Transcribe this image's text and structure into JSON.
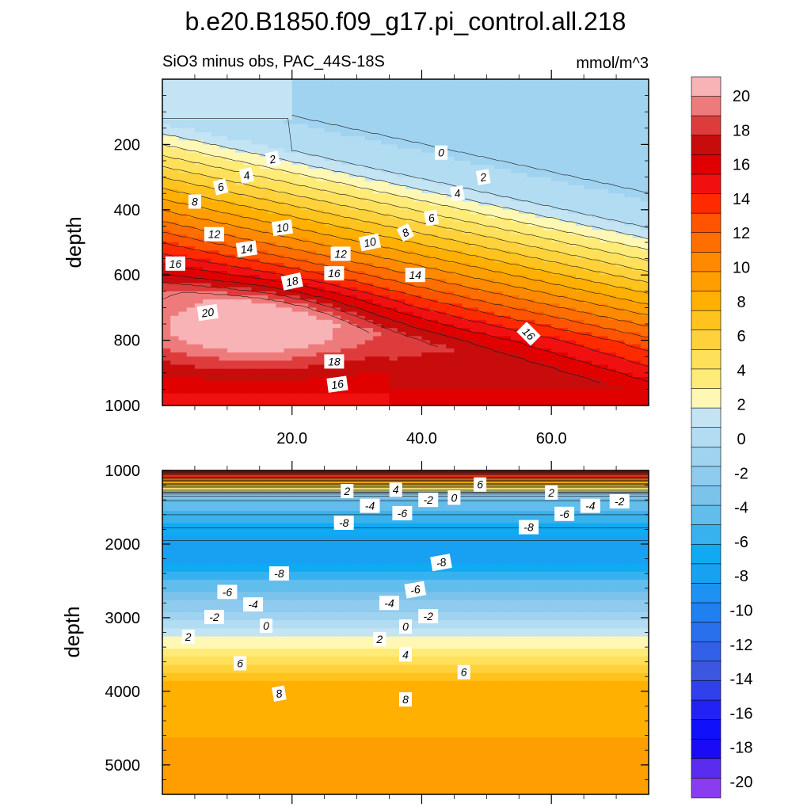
{
  "figure": {
    "title": "b.e20.B1850.f09_g17.pi_control.all.218",
    "subtitle_left": "SiO3 minus obs, PAC_44S-18S",
    "subtitle_right": "mmol/m^3"
  },
  "chart_data": [
    {
      "type": "contour",
      "panel": "upper",
      "xlabel": "",
      "ylabel": "depth",
      "xlim": [
        0,
        75
      ],
      "ylim": [
        1000,
        0
      ],
      "xticks": [
        20,
        40,
        60
      ],
      "xtick_labels": [
        "20.0",
        "40.0",
        "60.0"
      ],
      "yticks": [
        200,
        400,
        600,
        800,
        1000
      ],
      "ytick_labels": [
        "200",
        "400",
        "600",
        "800",
        "1000"
      ],
      "contour_labels": [
        {
          "text": "0",
          "x": 43,
          "y": 225,
          "angle": 0
        },
        {
          "text": "2",
          "x": 17,
          "y": 245,
          "angle": -12
        },
        {
          "text": "2",
          "x": 49.5,
          "y": 300,
          "angle": -10
        },
        {
          "text": "4",
          "x": 13,
          "y": 295,
          "angle": -12
        },
        {
          "text": "4",
          "x": 45.5,
          "y": 350,
          "angle": -10
        },
        {
          "text": "6",
          "x": 9,
          "y": 330,
          "angle": -14
        },
        {
          "text": "6",
          "x": 41.5,
          "y": 425,
          "angle": -10
        },
        {
          "text": "8",
          "x": 5,
          "y": 375,
          "angle": 0
        },
        {
          "text": "8",
          "x": 37.5,
          "y": 470,
          "angle": -28
        },
        {
          "text": "10",
          "x": 18.5,
          "y": 455,
          "angle": -8
        },
        {
          "text": "10",
          "x": 32,
          "y": 500,
          "angle": -12
        },
        {
          "text": "12",
          "x": 8,
          "y": 475,
          "angle": 0
        },
        {
          "text": "12",
          "x": 27.5,
          "y": 535,
          "angle": 0
        },
        {
          "text": "14",
          "x": 13,
          "y": 520,
          "angle": -8
        },
        {
          "text": "14",
          "x": 39,
          "y": 600,
          "angle": 0
        },
        {
          "text": "16",
          "x": 2,
          "y": 565,
          "angle": 0
        },
        {
          "text": "16",
          "x": 26.5,
          "y": 595,
          "angle": 0
        },
        {
          "text": "16",
          "x": 56.5,
          "y": 780,
          "angle": 45
        },
        {
          "text": "16",
          "x": 27,
          "y": 935,
          "angle": -8
        },
        {
          "text": "18",
          "x": 20,
          "y": 620,
          "angle": -12
        },
        {
          "text": "18",
          "x": 26.5,
          "y": 865,
          "angle": 0
        },
        {
          "text": "20",
          "x": 7,
          "y": 715,
          "angle": -8
        }
      ]
    },
    {
      "type": "contour",
      "panel": "lower",
      "xlabel": "",
      "ylabel": "depth",
      "xlim": [
        0,
        75
      ],
      "ylim": [
        5400,
        1000
      ],
      "xticks": [
        20,
        40,
        60
      ],
      "yticks": [
        1000,
        2000,
        3000,
        4000,
        5000
      ],
      "ytick_labels": [
        "1000",
        "2000",
        "3000",
        "4000",
        "5000"
      ],
      "contour_labels": [
        {
          "text": "2",
          "x": 28.5,
          "y": 1280,
          "angle": 0
        },
        {
          "text": "4",
          "x": 36,
          "y": 1260,
          "angle": 0
        },
        {
          "text": "6",
          "x": 49,
          "y": 1190,
          "angle": 0
        },
        {
          "text": "2",
          "x": 60,
          "y": 1300,
          "angle": 0
        },
        {
          "text": "-4",
          "x": 32,
          "y": 1480,
          "angle": 0
        },
        {
          "text": "-6",
          "x": 37,
          "y": 1580,
          "angle": 0
        },
        {
          "text": "-2",
          "x": 41,
          "y": 1400,
          "angle": 0
        },
        {
          "text": "0",
          "x": 45,
          "y": 1370,
          "angle": 0
        },
        {
          "text": "-6",
          "x": 62,
          "y": 1590,
          "angle": 0
        },
        {
          "text": "-4",
          "x": 66,
          "y": 1480,
          "angle": 0
        },
        {
          "text": "-2",
          "x": 70.5,
          "y": 1420,
          "angle": 0
        },
        {
          "text": "-8",
          "x": 28,
          "y": 1710,
          "angle": 0
        },
        {
          "text": "-8",
          "x": 56.5,
          "y": 1770,
          "angle": 0
        },
        {
          "text": "-8",
          "x": 18,
          "y": 2400,
          "angle": 0
        },
        {
          "text": "-8",
          "x": 43,
          "y": 2250,
          "angle": -10
        },
        {
          "text": "-6",
          "x": 10,
          "y": 2650,
          "angle": 0
        },
        {
          "text": "-6",
          "x": 39,
          "y": 2620,
          "angle": -10
        },
        {
          "text": "-4",
          "x": 14,
          "y": 2820,
          "angle": 0
        },
        {
          "text": "-4",
          "x": 35,
          "y": 2800,
          "angle": 0
        },
        {
          "text": "-2",
          "x": 8,
          "y": 2990,
          "angle": 0
        },
        {
          "text": "-2",
          "x": 41,
          "y": 2980,
          "angle": 0
        },
        {
          "text": "0",
          "x": 16,
          "y": 3110,
          "angle": 0
        },
        {
          "text": "0",
          "x": 37.5,
          "y": 3120,
          "angle": 0
        },
        {
          "text": "2",
          "x": 4,
          "y": 3260,
          "angle": 0
        },
        {
          "text": "2",
          "x": 33.5,
          "y": 3290,
          "angle": 0
        },
        {
          "text": "4",
          "x": 37.5,
          "y": 3500,
          "angle": 0
        },
        {
          "text": "6",
          "x": 12,
          "y": 3620,
          "angle": 0
        },
        {
          "text": "6",
          "x": 46.5,
          "y": 3740,
          "angle": 0
        },
        {
          "text": "8",
          "x": 18,
          "y": 4030,
          "angle": -10
        },
        {
          "text": "8",
          "x": 37.5,
          "y": 4110,
          "angle": 0
        }
      ]
    }
  ],
  "colorbar": {
    "levels": [
      20,
      18,
      16,
      14,
      12,
      10,
      8,
      6,
      4,
      2,
      0,
      -2,
      -4,
      -6,
      -8,
      -10,
      -12,
      -14,
      -16,
      -18,
      -20
    ],
    "labels": [
      "20",
      "18",
      "16",
      "14",
      "12",
      "10",
      "8",
      "6",
      "4",
      "2",
      "0",
      "-2",
      "-4",
      "-6",
      "-8",
      "-10",
      "-12",
      "-14",
      "-16",
      "-18",
      "-20"
    ],
    "colors": [
      "#F8B3B7",
      "#EE7B7B",
      "#DE3C3C",
      "#C80C0C",
      "#E10000",
      "#F11010",
      "#FF2A00",
      "#FF5500",
      "#FF6E00",
      "#FF8A00",
      "#FF9E00",
      "#FFB000",
      "#FFC31E",
      "#FFD23C",
      "#FFE05A",
      "#FFEB78",
      "#FFF8B4",
      "#C4E4F4",
      "#B2DCF2",
      "#A0D3F0",
      "#8ECBEE",
      "#7CC3EC",
      "#62BCEC",
      "#38B2EF",
      "#10AAF2",
      "#18A0F2",
      "#1E92F2",
      "#2080F0",
      "#2870EC",
      "#3260E8",
      "#3C56E0",
      "#3040EC",
      "#2222F4",
      "#1010FA",
      "#1A0AF6",
      "#5A2CF0",
      "#8A3CF0"
    ],
    "overflow_top": "#F8B3B7",
    "underflow_bottom": "#8A3CF0"
  }
}
